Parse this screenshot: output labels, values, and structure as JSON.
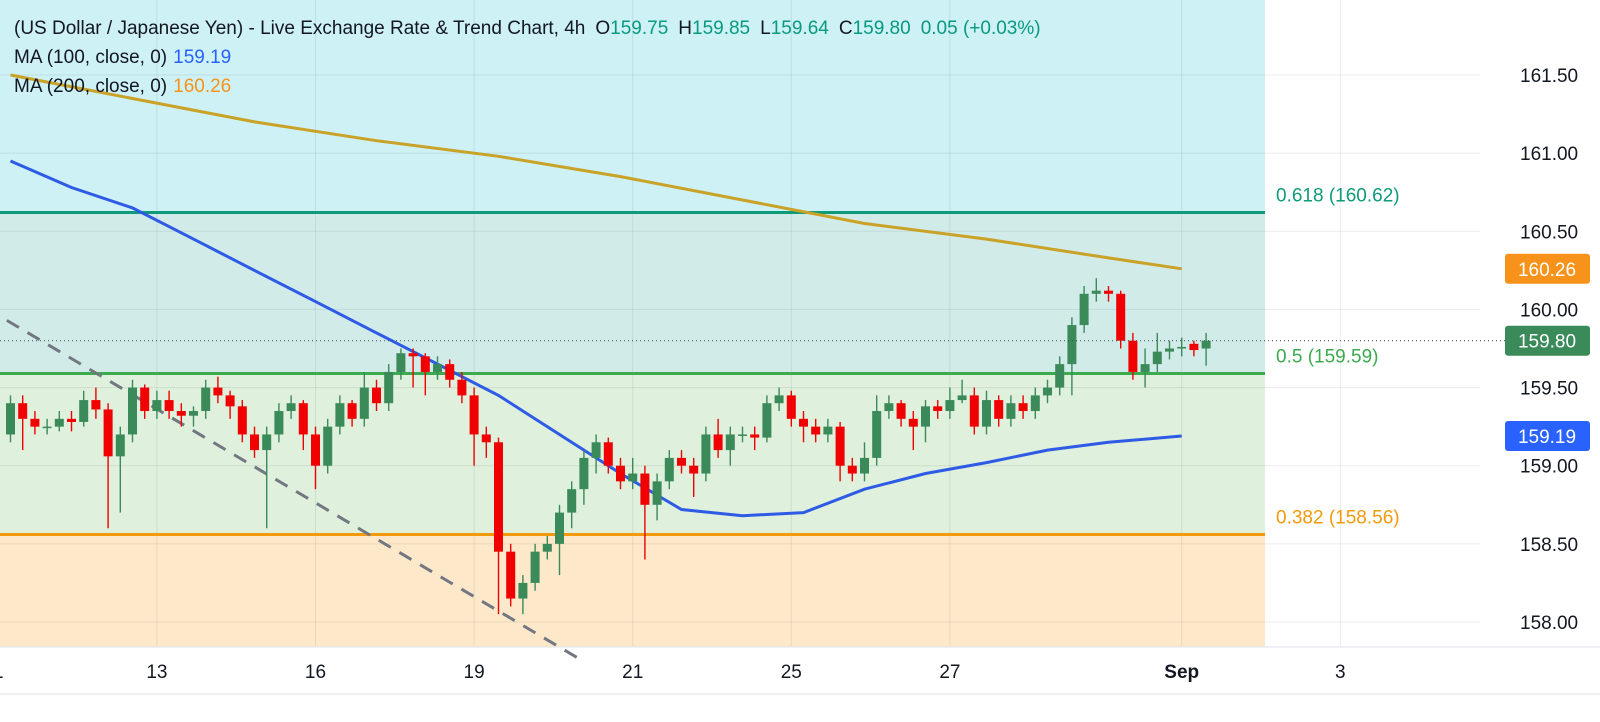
{
  "header": {
    "title": "(US Dollar / Japanese Yen) - Live Exchange Rate & Trend Chart, 4h",
    "ohlc": [
      {
        "label": "O",
        "value": "159.75"
      },
      {
        "label": "H",
        "value": "159.85"
      },
      {
        "label": "L",
        "value": "159.64"
      },
      {
        "label": "C",
        "value": "159.80"
      }
    ],
    "change": "0.05 (+0.03%)"
  },
  "indicators": [
    {
      "label": "MA (100, close, 0)",
      "value": "159.19",
      "color": "#2962ff"
    },
    {
      "label": "MA (200, close, 0)",
      "value": "160.26",
      "color": "#f7931a"
    }
  ],
  "colors": {
    "up": "#3a8a5a",
    "down": "#f00000",
    "ma100_line": "#2e5be6",
    "ma200_line": "#c9a227",
    "fib_618": "#0e9b7a",
    "fib_50": "#3caa4f",
    "fib_382": "#f29a0c",
    "zone_top": "#cdf1f4",
    "zone_mid_upper": "#d1ece8",
    "zone_mid_lower": "#dff0dc",
    "zone_bottom": "#fde8c9",
    "trendline": "#737782"
  },
  "chart_data": {
    "type": "candlestick",
    "instrument": "US Dollar / Japanese Yen",
    "interval": "4h",
    "y_axis": {
      "ticks": [
        "161.50",
        "161.00",
        "160.50",
        "160.00",
        "159.50",
        "159.00",
        "158.50",
        "158.00"
      ],
      "range": [
        157.84,
        161.98
      ]
    },
    "x_axis": {
      "ticks": [
        {
          "label": "1",
          "index": -1
        },
        {
          "label": "13",
          "index": 12
        },
        {
          "label": "16",
          "index": 25
        },
        {
          "label": "19",
          "index": 38
        },
        {
          "label": "21",
          "index": 51
        },
        {
          "label": "25",
          "index": 64
        },
        {
          "label": "27",
          "index": 77
        },
        {
          "label": "Sep",
          "index": 96,
          "bold": true
        },
        {
          "label": "3",
          "index": 109
        }
      ]
    },
    "price_labels": [
      {
        "value": "160.26",
        "color": "#f7931a"
      },
      {
        "value": "159.80",
        "color": "#3a8a5a"
      },
      {
        "value": "159.19",
        "color": "#2962ff"
      }
    ],
    "last_close": 159.8,
    "fib_levels": [
      {
        "label": "0.618 (160.62)",
        "value": 160.62,
        "color": "#0e9b7a"
      },
      {
        "label": "0.5 (159.59)",
        "value": 159.59,
        "color": "#3caa4f"
      },
      {
        "label": "0.382 (158.56)",
        "value": 158.56,
        "color": "#f29a0c"
      }
    ],
    "trendline": [
      [
        -0.3,
        159.93
      ],
      [
        46.5,
        157.77
      ]
    ],
    "candles": [
      [
        159.2,
        159.4,
        159.45,
        159.15
      ],
      [
        159.4,
        159.3,
        159.45,
        159.1
      ],
      [
        159.3,
        159.25,
        159.35,
        159.2
      ],
      [
        159.25,
        159.25,
        159.3,
        159.2
      ],
      [
        159.25,
        159.3,
        159.35,
        159.22
      ],
      [
        159.3,
        159.28,
        159.35,
        159.22
      ],
      [
        159.28,
        159.42,
        159.48,
        159.25
      ],
      [
        159.42,
        159.36,
        159.5,
        159.3
      ],
      [
        159.36,
        159.06,
        159.4,
        158.6
      ],
      [
        159.06,
        159.2,
        159.25,
        158.7
      ],
      [
        159.2,
        159.5,
        159.55,
        159.15
      ],
      [
        159.5,
        159.35,
        159.52,
        159.3
      ],
      [
        159.35,
        159.42,
        159.48,
        159.3
      ],
      [
        159.42,
        159.35,
        159.48,
        159.3
      ],
      [
        159.35,
        159.32,
        159.4,
        159.25
      ],
      [
        159.32,
        159.35,
        159.38,
        159.25
      ],
      [
        159.35,
        159.5,
        159.55,
        159.3
      ],
      [
        159.5,
        159.45,
        159.57,
        159.4
      ],
      [
        159.45,
        159.38,
        159.48,
        159.3
      ],
      [
        159.38,
        159.2,
        159.42,
        159.15
      ],
      [
        159.2,
        159.1,
        159.25,
        159.05
      ],
      [
        159.1,
        159.2,
        159.25,
        158.6
      ],
      [
        159.2,
        159.35,
        159.4,
        159.15
      ],
      [
        159.35,
        159.4,
        159.45,
        159.3
      ],
      [
        159.4,
        159.2,
        159.42,
        159.1
      ],
      [
        159.2,
        159.0,
        159.25,
        158.85
      ],
      [
        159.0,
        159.25,
        159.3,
        158.95
      ],
      [
        159.25,
        159.4,
        159.45,
        159.2
      ],
      [
        159.4,
        159.3,
        159.42,
        159.25
      ],
      [
        159.3,
        159.5,
        159.6,
        159.25
      ],
      [
        159.5,
        159.4,
        159.55,
        159.35
      ],
      [
        159.4,
        159.6,
        159.65,
        159.35
      ],
      [
        159.6,
        159.72,
        159.75,
        159.55
      ],
      [
        159.72,
        159.7,
        159.75,
        159.5
      ],
      [
        159.7,
        159.6,
        159.72,
        159.45
      ],
      [
        159.6,
        159.65,
        159.7,
        159.55
      ],
      [
        159.65,
        159.55,
        159.68,
        159.5
      ],
      [
        159.55,
        159.45,
        159.6,
        159.4
      ],
      [
        159.45,
        159.2,
        159.5,
        159.0
      ],
      [
        159.2,
        159.15,
        159.25,
        159.05
      ],
      [
        159.15,
        158.45,
        159.18,
        158.05
      ],
      [
        158.45,
        158.15,
        158.5,
        158.1
      ],
      [
        158.15,
        158.25,
        158.3,
        158.05
      ],
      [
        158.25,
        158.45,
        158.5,
        158.2
      ],
      [
        158.45,
        158.5,
        158.55,
        158.4
      ],
      [
        158.5,
        158.7,
        158.75,
        158.3
      ],
      [
        158.7,
        158.85,
        158.9,
        158.6
      ],
      [
        158.85,
        159.05,
        159.1,
        158.75
      ],
      [
        159.05,
        159.15,
        159.2,
        158.95
      ],
      [
        159.15,
        159.0,
        159.18,
        158.95
      ],
      [
        159.0,
        158.9,
        159.05,
        158.85
      ],
      [
        158.9,
        158.95,
        159.05,
        158.85
      ],
      [
        158.95,
        158.75,
        159.0,
        158.4
      ],
      [
        158.75,
        158.9,
        158.95,
        158.65
      ],
      [
        158.9,
        159.05,
        159.1,
        158.85
      ],
      [
        159.05,
        159.0,
        159.1,
        158.95
      ],
      [
        159.0,
        158.95,
        159.05,
        158.8
      ],
      [
        158.95,
        159.2,
        159.25,
        158.9
      ],
      [
        159.2,
        159.1,
        159.3,
        159.05
      ],
      [
        159.1,
        159.2,
        159.25,
        159.0
      ],
      [
        159.2,
        159.2,
        159.25,
        159.15
      ],
      [
        159.2,
        159.18,
        159.25,
        159.1
      ],
      [
        159.18,
        159.4,
        159.45,
        159.15
      ],
      [
        159.4,
        159.45,
        159.5,
        159.35
      ],
      [
        159.45,
        159.3,
        159.48,
        159.25
      ],
      [
        159.3,
        159.25,
        159.35,
        159.15
      ],
      [
        159.25,
        159.2,
        159.3,
        159.15
      ],
      [
        159.2,
        159.25,
        159.3,
        159.15
      ],
      [
        159.25,
        159.0,
        159.28,
        158.9
      ],
      [
        159.0,
        158.95,
        159.05,
        158.9
      ],
      [
        158.95,
        159.05,
        159.15,
        158.9
      ],
      [
        159.05,
        159.35,
        159.45,
        159.0
      ],
      [
        159.35,
        159.4,
        159.45,
        159.3
      ],
      [
        159.4,
        159.3,
        159.42,
        159.25
      ],
      [
        159.3,
        159.25,
        159.35,
        159.1
      ],
      [
        159.25,
        159.38,
        159.42,
        159.15
      ],
      [
        159.38,
        159.35,
        159.42,
        159.3
      ],
      [
        159.35,
        159.42,
        159.5,
        159.3
      ],
      [
        159.42,
        159.45,
        159.55,
        159.4
      ],
      [
        159.45,
        159.25,
        159.5,
        159.2
      ],
      [
        159.25,
        159.42,
        159.48,
        159.2
      ],
      [
        159.42,
        159.3,
        159.45,
        159.25
      ],
      [
        159.3,
        159.4,
        159.45,
        159.25
      ],
      [
        159.4,
        159.35,
        159.45,
        159.3
      ],
      [
        159.35,
        159.45,
        159.5,
        159.3
      ],
      [
        159.45,
        159.5,
        159.55,
        159.4
      ],
      [
        159.5,
        159.65,
        159.7,
        159.45
      ],
      [
        159.65,
        159.9,
        159.95,
        159.45
      ],
      [
        159.9,
        160.1,
        160.15,
        159.85
      ],
      [
        160.1,
        160.12,
        160.2,
        160.05
      ],
      [
        160.12,
        160.1,
        160.15,
        160.05
      ],
      [
        160.1,
        159.8,
        160.12,
        159.75
      ],
      [
        159.8,
        159.6,
        159.85,
        159.55
      ],
      [
        159.6,
        159.65,
        159.75,
        159.5
      ],
      [
        159.65,
        159.73,
        159.85,
        159.6
      ],
      [
        159.73,
        159.75,
        159.8,
        159.68
      ],
      [
        159.75,
        159.76,
        159.82,
        159.7
      ],
      [
        159.78,
        159.74,
        159.8,
        159.7
      ],
      [
        159.75,
        159.8,
        159.85,
        159.64
      ]
    ],
    "ma100": [
      [
        0,
        160.95
      ],
      [
        5,
        160.78
      ],
      [
        10,
        160.65
      ],
      [
        15,
        160.45
      ],
      [
        20,
        160.25
      ],
      [
        25,
        160.05
      ],
      [
        30,
        159.85
      ],
      [
        35,
        159.65
      ],
      [
        40,
        159.45
      ],
      [
        45,
        159.2
      ],
      [
        50,
        158.95
      ],
      [
        55,
        158.72
      ],
      [
        60,
        158.68
      ],
      [
        65,
        158.7
      ],
      [
        70,
        158.85
      ],
      [
        75,
        158.95
      ],
      [
        80,
        159.02
      ],
      [
        85,
        159.1
      ],
      [
        90,
        159.15
      ],
      [
        96,
        159.19
      ]
    ],
    "ma200": [
      [
        0,
        161.5
      ],
      [
        10,
        161.35
      ],
      [
        20,
        161.2
      ],
      [
        30,
        161.08
      ],
      [
        40,
        160.98
      ],
      [
        50,
        160.85
      ],
      [
        60,
        160.7
      ],
      [
        70,
        160.55
      ],
      [
        80,
        160.45
      ],
      [
        90,
        160.33
      ],
      [
        96,
        160.26
      ]
    ]
  }
}
